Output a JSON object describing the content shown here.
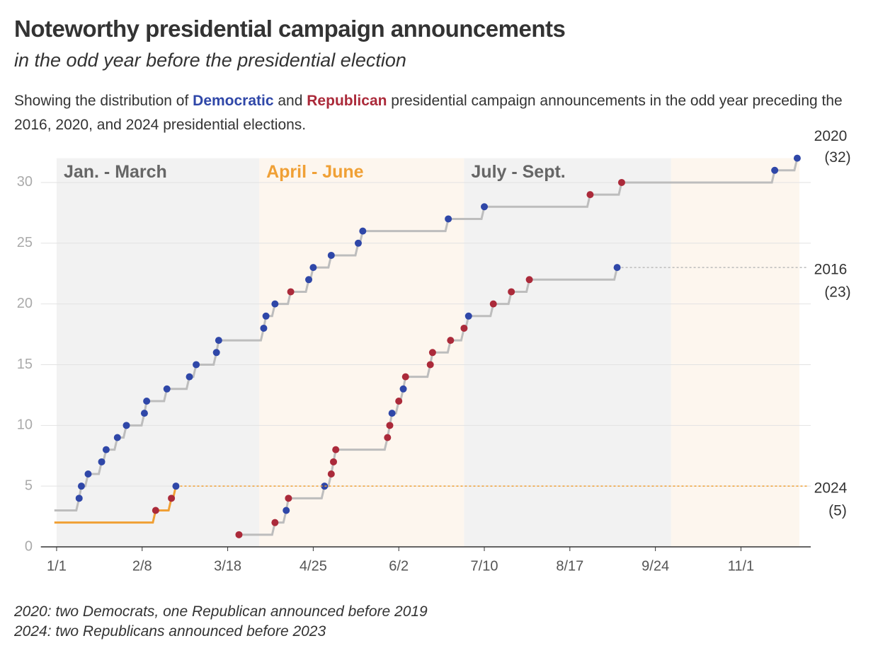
{
  "chart_data": {
    "type": "step",
    "title": "Noteworthy presidential campaign announcements",
    "subtitle": "in the odd year before the presidential election",
    "description": [
      "Showing the distribution of ",
      "Democratic",
      " and ",
      "Republican",
      " presidential campaign announcements in the odd year preceding the 2016, 2020, and 2024 presidential elections."
    ],
    "parties": [
      {
        "name": "Democratic",
        "color": "#2f47a8"
      },
      {
        "name": "Republican",
        "color": "#ab2a3a"
      }
    ],
    "notes": [
      "2020: two Democrats, one Republican announced before 2019",
      "2024: two Republicans announced before 2023"
    ],
    "xlim": [
      -7,
      335
    ],
    "xticks": [
      {
        "value": 0,
        "label": "1/1"
      },
      {
        "value": 38,
        "label": "2/8"
      },
      {
        "value": 76,
        "label": "3/18"
      },
      {
        "value": 114,
        "label": "4/25"
      },
      {
        "value": 152,
        "label": "6/2"
      },
      {
        "value": 190,
        "label": "7/10"
      },
      {
        "value": 228,
        "label": "8/17"
      },
      {
        "value": 266,
        "label": "9/24"
      },
      {
        "value": 304,
        "label": "11/1"
      }
    ],
    "ylim": [
      0,
      32
    ],
    "yticks": [
      0,
      5,
      10,
      15,
      20,
      25,
      30
    ],
    "grid": true,
    "bands": [
      {
        "label": "Jan. - March",
        "start": 0,
        "end": 90,
        "color": "#f2f2f2",
        "label_color": "#666666"
      },
      {
        "label": "April - June",
        "start": 90,
        "end": 181,
        "color": "#fdf6ee",
        "label_color": "#f0a035"
      },
      {
        "label": "July - Sept.",
        "start": 181,
        "end": 273,
        "color": "#f2f2f2",
        "label_color": "#666666"
      },
      {
        "label": null,
        "start": 273,
        "end": 330,
        "color": "#fdf6ee",
        "label_color": "#666666"
      }
    ],
    "series": [
      {
        "name": "2020",
        "end_label": "(32)",
        "color": "#bdbdbd",
        "extend_dashed": false,
        "x": [
          -1,
          10,
          11,
          14,
          20,
          22,
          27,
          31,
          39,
          40,
          49,
          59,
          62,
          71,
          72,
          92,
          93,
          97,
          104,
          112,
          114,
          122,
          134,
          136,
          174,
          190,
          237,
          251,
          319,
          329
        ],
        "values": [
          3,
          4,
          5,
          6,
          7,
          8,
          9,
          10,
          11,
          12,
          13,
          14,
          15,
          16,
          17,
          18,
          19,
          20,
          21,
          22,
          23,
          24,
          25,
          26,
          27,
          28,
          29,
          30,
          31,
          32
        ],
        "party": [
          null,
          0,
          0,
          0,
          0,
          0,
          0,
          0,
          0,
          0,
          0,
          0,
          0,
          0,
          0,
          0,
          0,
          0,
          1,
          0,
          0,
          0,
          0,
          0,
          0,
          0,
          1,
          1,
          0,
          0
        ]
      },
      {
        "name": "2016",
        "end_label": "(23)",
        "color": "#bdbdbd",
        "extend_dashed": true,
        "x": [
          81,
          97,
          102,
          103,
          119,
          122,
          123,
          124,
          147,
          148,
          149,
          152,
          154,
          155,
          166,
          167,
          175,
          181,
          183,
          194,
          202,
          210,
          249
        ],
        "values": [
          1,
          2,
          3,
          4,
          5,
          6,
          7,
          8,
          9,
          10,
          11,
          12,
          13,
          14,
          15,
          16,
          17,
          18,
          19,
          20,
          21,
          22,
          23
        ],
        "party": [
          1,
          1,
          0,
          1,
          0,
          1,
          1,
          1,
          1,
          1,
          0,
          1,
          0,
          1,
          1,
          1,
          1,
          1,
          0,
          1,
          1,
          1,
          0
        ]
      },
      {
        "name": "2024",
        "end_label": "(5)",
        "color": "#f0a035",
        "extend_dashed": true,
        "x": [
          -1,
          44,
          51,
          53
        ],
        "values": [
          2,
          3,
          4,
          5
        ],
        "party": [
          null,
          1,
          1,
          0
        ]
      }
    ]
  }
}
